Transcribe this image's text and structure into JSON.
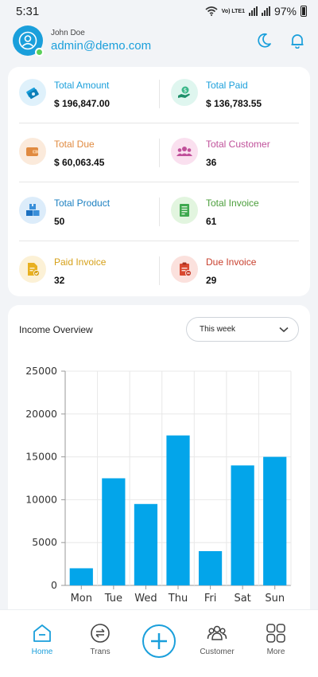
{
  "status_bar": {
    "time": "5:31",
    "network": "Vo) LTE1",
    "battery": "97%"
  },
  "header": {
    "user_name": "John Doe",
    "email": "admin@demo.com"
  },
  "stats": [
    {
      "label": "Total Amount",
      "value": "$ 196,847.00",
      "color": "#1a9fdb",
      "bg": "#dff1fb",
      "icon": "money-icon"
    },
    {
      "label": "Total Paid",
      "value": "$ 136,783.55",
      "color": "#1a9fdb",
      "bg": "#dff6ef",
      "icon": "hand-money-icon"
    },
    {
      "label": "Total Due",
      "value": "$ 60,063.45",
      "color": "#e08a40",
      "bg": "#fbeadb",
      "icon": "wallet-icon"
    },
    {
      "label": "Total Customer",
      "value": "36",
      "color": "#c0509a",
      "bg": "#fae0ef",
      "icon": "users-icon"
    },
    {
      "label": "Total Product",
      "value": "50",
      "color": "#1a7fc0",
      "bg": "#dcecfa",
      "icon": "boxes-icon"
    },
    {
      "label": "Total Invoice",
      "value": "61",
      "color": "#4a9e3a",
      "bg": "#e2f5df",
      "icon": "invoice-icon"
    },
    {
      "label": "Paid Invoice",
      "value": "32",
      "color": "#d6a018",
      "bg": "#fcf1d6",
      "icon": "paid-invoice-icon"
    },
    {
      "label": "Due Invoice",
      "value": "29",
      "color": "#c8402e",
      "bg": "#fbe1dd",
      "icon": "due-invoice-icon"
    }
  ],
  "income": {
    "title": "Income Overview",
    "period": "This week"
  },
  "chart_data": {
    "type": "bar",
    "categories": [
      "Mon",
      "Tue",
      "Wed",
      "Thu",
      "Fri",
      "Sat",
      "Sun"
    ],
    "values": [
      2000,
      12500,
      9500,
      17500,
      4000,
      14000,
      15000
    ],
    "ylim": [
      0,
      25000
    ],
    "yticks": [
      0,
      5000,
      10000,
      15000,
      20000,
      25000
    ],
    "grid": true,
    "bar_color": "#03a5ea"
  },
  "nav": [
    {
      "label": "Home",
      "icon": "home-icon",
      "active": true
    },
    {
      "label": "Trans",
      "icon": "transfer-icon",
      "active": false
    },
    {
      "label": "",
      "icon": "add-icon",
      "active": false
    },
    {
      "label": "Customer",
      "icon": "customers-icon",
      "active": false
    },
    {
      "label": "More",
      "icon": "grid-icon",
      "active": false
    }
  ],
  "colors": {
    "accent": "#1a9fdb",
    "online": "#5ad05a"
  }
}
